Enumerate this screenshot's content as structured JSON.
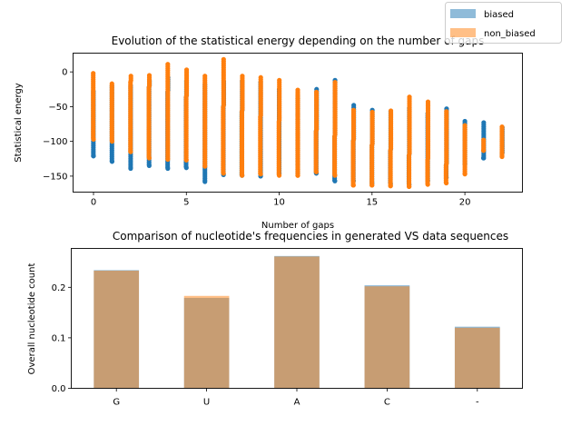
{
  "legend": {
    "placement": "top-right",
    "entries": [
      {
        "label": "biased",
        "color": "#1f77b4"
      },
      {
        "label": "non_biased",
        "color": "#ff7f0e"
      }
    ]
  },
  "chart_data": [
    {
      "type": "scatter",
      "title": "Evolution of the statistical energy depending on the number of gaps",
      "xlabel": "Number of gaps",
      "ylabel": "Statistical energy",
      "xlim": [
        -1.1,
        23.1
      ],
      "ylim": [
        -173,
        27
      ],
      "xticks": [
        0,
        5,
        10,
        15,
        20
      ],
      "yticks": [
        0,
        -50,
        -100,
        -150
      ],
      "grid": false,
      "series": [
        {
          "name": "biased",
          "color": "#1f77b4",
          "points": [
            {
              "x": 0,
              "min": -121,
              "max": -28
            },
            {
              "x": 1,
              "min": -129,
              "max": -20
            },
            {
              "x": 2,
              "min": -139,
              "max": -20
            },
            {
              "x": 3,
              "min": -135,
              "max": -13
            },
            {
              "x": 4,
              "min": -139,
              "max": -8
            },
            {
              "x": 5,
              "min": -138,
              "max": -13
            },
            {
              "x": 6,
              "min": -158,
              "max": -18
            },
            {
              "x": 7,
              "min": -148,
              "max": -14
            },
            {
              "x": 8,
              "min": -149,
              "max": -13
            },
            {
              "x": 9,
              "min": -150,
              "max": -15
            },
            {
              "x": 10,
              "min": -147,
              "max": -25
            },
            {
              "x": 11,
              "min": -146,
              "max": -35
            },
            {
              "x": 12,
              "min": -146,
              "max": -25
            },
            {
              "x": 13,
              "min": -157,
              "max": -12
            },
            {
              "x": 14,
              "min": -157,
              "max": -48
            },
            {
              "x": 15,
              "min": -160,
              "max": -55
            },
            {
              "x": 16,
              "min": -161,
              "max": -57
            },
            {
              "x": 17,
              "min": -162,
              "max": -52
            },
            {
              "x": 18,
              "min": -157,
              "max": -60
            },
            {
              "x": 19,
              "min": -152,
              "max": -53
            },
            {
              "x": 20,
              "min": -133,
              "max": -71
            },
            {
              "x": 21,
              "min": -124,
              "max": -73
            },
            {
              "x": 22,
              "min": -118,
              "max": -80
            }
          ]
        },
        {
          "name": "non_biased",
          "color": "#ff7f0e",
          "points": [
            {
              "x": 0,
              "min": -97,
              "max": -2
            },
            {
              "x": 1,
              "min": -100,
              "max": -17
            },
            {
              "x": 2,
              "min": -115,
              "max": -6
            },
            {
              "x": 3,
              "min": -124,
              "max": -5
            },
            {
              "x": 4,
              "min": -126,
              "max": 11
            },
            {
              "x": 5,
              "min": -127,
              "max": 3
            },
            {
              "x": 6,
              "min": -136,
              "max": -6
            },
            {
              "x": 7,
              "min": -146,
              "max": 18
            },
            {
              "x": 8,
              "min": -149,
              "max": -6
            },
            {
              "x": 9,
              "min": -147,
              "max": -8
            },
            {
              "x": 10,
              "min": -149,
              "max": -12
            },
            {
              "x": 11,
              "min": -149,
              "max": -26
            },
            {
              "x": 12,
              "min": -144,
              "max": -29
            },
            {
              "x": 13,
              "min": -149,
              "max": -15
            },
            {
              "x": 14,
              "min": -163,
              "max": -55
            },
            {
              "x": 15,
              "min": -163,
              "max": -58
            },
            {
              "x": 16,
              "min": -164,
              "max": -56
            },
            {
              "x": 17,
              "min": -165,
              "max": -36
            },
            {
              "x": 18,
              "min": -162,
              "max": -43
            },
            {
              "x": 19,
              "min": -160,
              "max": -57
            },
            {
              "x": 20,
              "min": -147,
              "max": -77
            },
            {
              "x": 21,
              "min": -113,
              "max": -98
            },
            {
              "x": 22,
              "min": -122,
              "max": -79
            }
          ]
        }
      ]
    },
    {
      "type": "bar",
      "title": "Comparison of nucleotide's frequencies in generated VS data sequences",
      "xlabel": "",
      "ylabel": "Overall nucleotide count",
      "categories": [
        "G",
        "U",
        "A",
        "C",
        "-"
      ],
      "ylim": [
        0,
        0.277
      ],
      "yticks": [
        0.0,
        0.1,
        0.2
      ],
      "ytick_labels": [
        "0.0",
        "0.1",
        "0.2"
      ],
      "grid": false,
      "series": [
        {
          "name": "biased",
          "color": "#1f77b4",
          "values": [
            0.234,
            0.179,
            0.262,
            0.204,
            0.122
          ]
        },
        {
          "name": "non_biased",
          "color": "#ff7f0e",
          "values": [
            0.233,
            0.183,
            0.261,
            0.202,
            0.12
          ]
        }
      ]
    }
  ]
}
